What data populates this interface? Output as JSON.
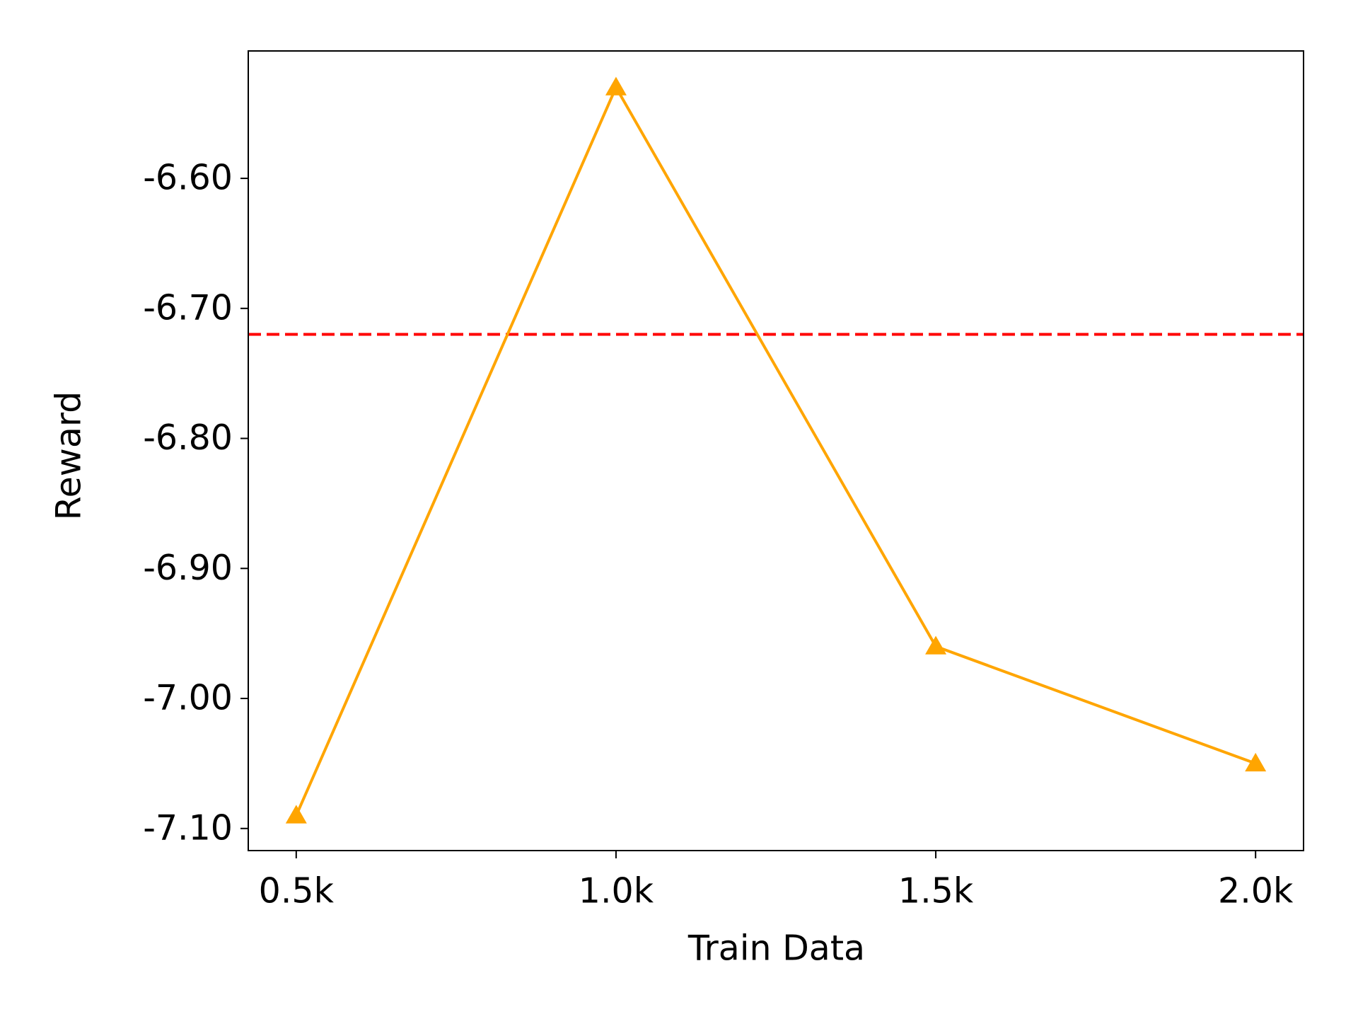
{
  "chart_data": {
    "type": "line",
    "x_label": "Train Data",
    "y_label": "Reward",
    "categories": [
      "0.5k",
      "1.0k",
      "1.5k",
      "2.0k"
    ],
    "series": [
      {
        "color": "#ffa500",
        "marker": "triangle",
        "values": [
          -7.09,
          -6.53,
          -6.96,
          -7.05
        ]
      }
    ],
    "hlines": [
      {
        "value": -6.72,
        "color": "#ff0000",
        "style": "dashed"
      }
    ],
    "ylim": [
      -7.117,
      -6.502
    ],
    "yticks": [
      {
        "value": -7.1,
        "label": "-7.10"
      },
      {
        "value": -7.0,
        "label": "-7.00"
      },
      {
        "value": -6.9,
        "label": "-6.90"
      },
      {
        "value": -6.8,
        "label": "-6.80"
      },
      {
        "value": -6.7,
        "label": "-6.70"
      },
      {
        "value": -6.6,
        "label": "-6.60"
      }
    ],
    "grid": false
  }
}
